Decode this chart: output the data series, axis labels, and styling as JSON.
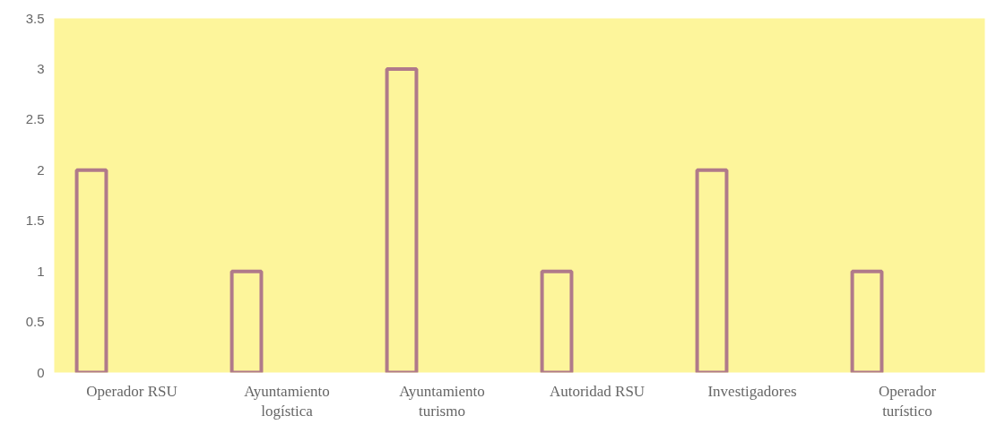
{
  "chart_data": {
    "type": "bar",
    "categories": [
      "Operador RSU",
      "Ayuntamiento\nlogística",
      "Ayuntamiento\nturismo",
      "Autoridad RSU",
      "Investigadores",
      "Operador\nturístico"
    ],
    "values": [
      2,
      1,
      3,
      1,
      2,
      1
    ],
    "color": "#b07a8a",
    "ylim": [
      0,
      3.5
    ],
    "yticks": [
      0,
      0.5,
      1,
      1.5,
      2,
      2.5,
      3,
      3.5
    ],
    "grid": false
  }
}
